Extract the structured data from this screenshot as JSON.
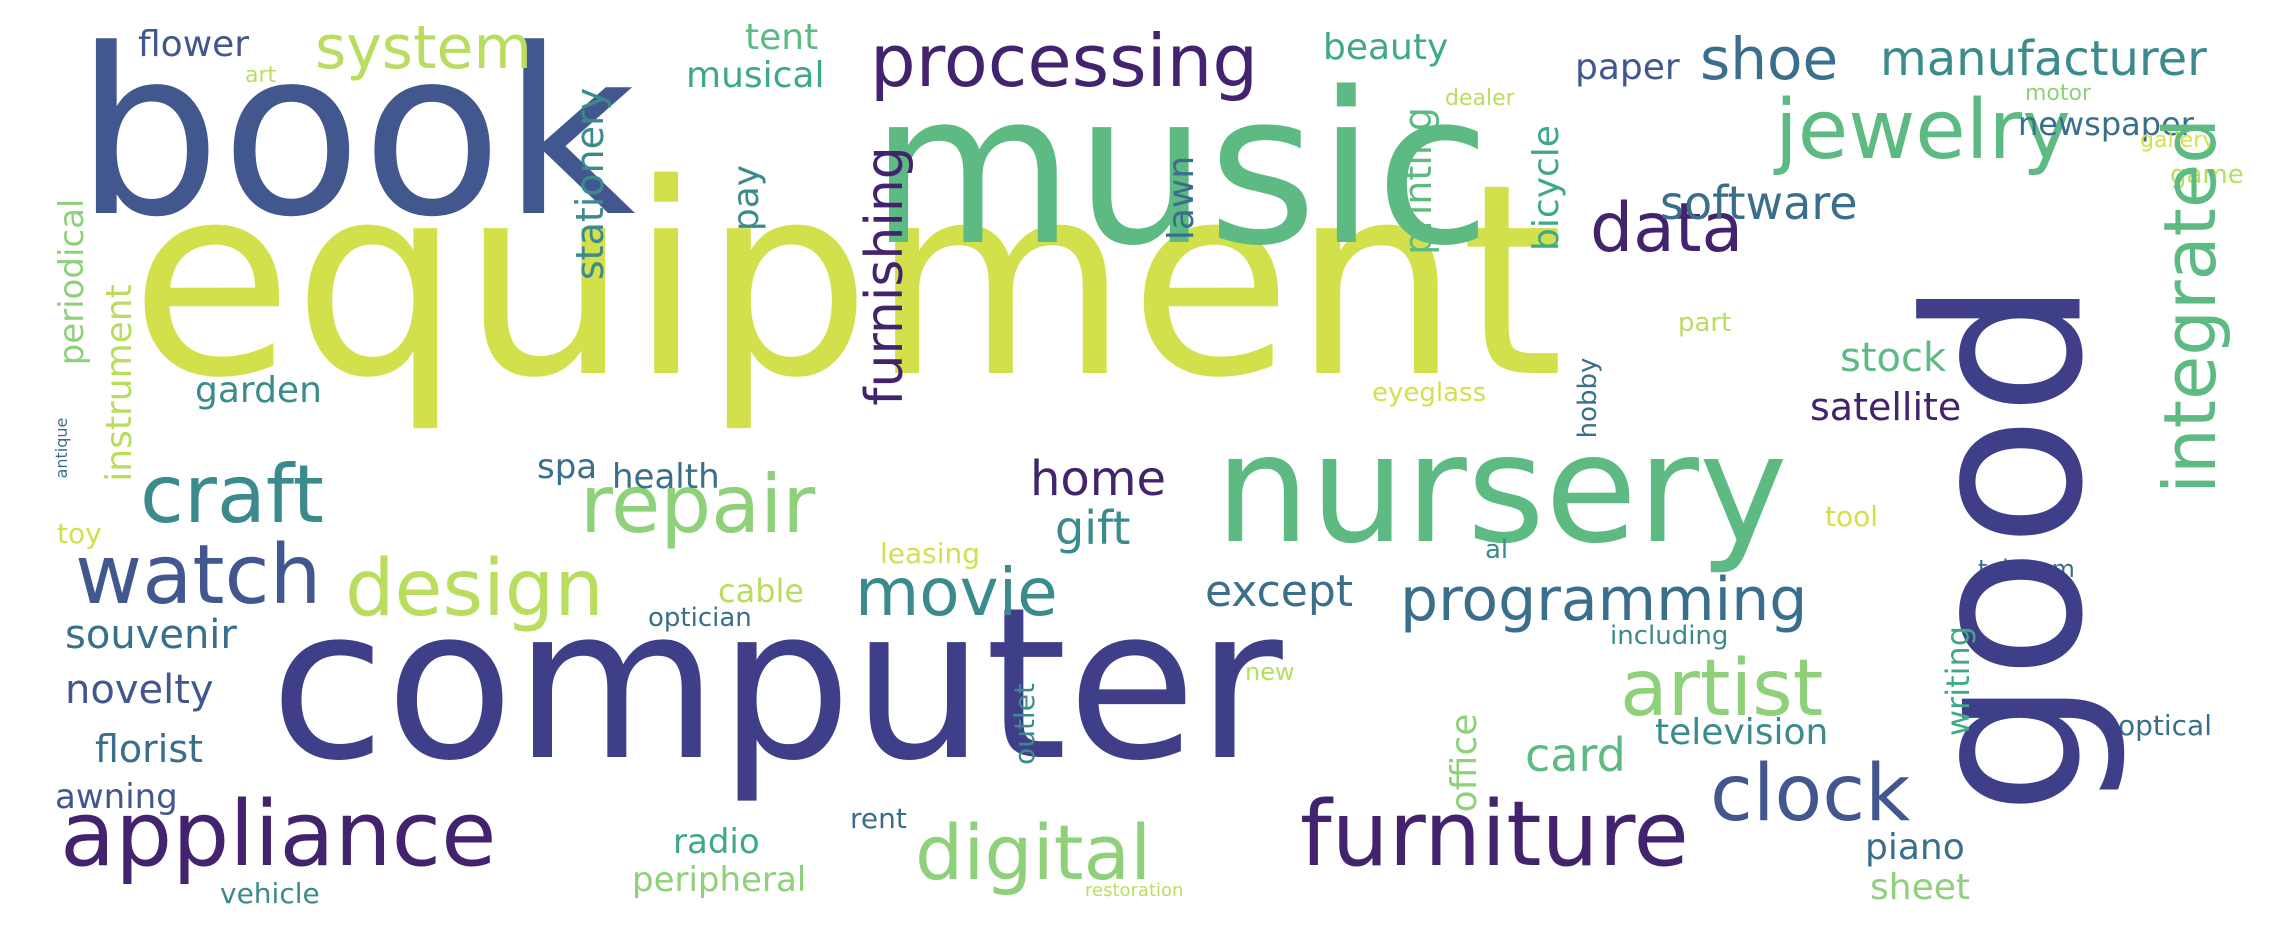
{
  "palette": {
    "lime": "#d2e14b",
    "yellow_green": "#b9dd5e",
    "light_green": "#8fd07a",
    "green": "#5dba82",
    "teal_green": "#3fa88a",
    "teal": "#3c8b8c",
    "blue_teal": "#3a6f8c",
    "slate": "#41578d",
    "indigo": "#3f3e88",
    "purple": "#43236e"
  },
  "words": [
    {
      "text": "equipment",
      "color": "#d2e14b"
    },
    {
      "text": "music",
      "color": "#5dba82"
    },
    {
      "text": "book",
      "color": "#41578d"
    },
    {
      "text": "computer",
      "color": "#3f3e88"
    },
    {
      "text": "nursery",
      "color": "#5dba82"
    },
    {
      "text": "good",
      "color": "#3f3e88"
    },
    {
      "text": "processing",
      "color": "#43236e"
    },
    {
      "text": "jewelry",
      "color": "#5dba82"
    },
    {
      "text": "repair",
      "color": "#8fd07a"
    },
    {
      "text": "appliance",
      "color": "#43236e"
    },
    {
      "text": "furniture",
      "color": "#43236e"
    },
    {
      "text": "digital",
      "color": "#8fd07a"
    },
    {
      "text": "watch",
      "color": "#41578d"
    },
    {
      "text": "craft",
      "color": "#3c8b8c"
    },
    {
      "text": "design",
      "color": "#b9dd5e"
    },
    {
      "text": "system",
      "color": "#b9dd5e"
    },
    {
      "text": "integrated",
      "color": "#5dba82"
    },
    {
      "text": "data",
      "color": "#43236e"
    },
    {
      "text": "shoe",
      "color": "#3a6f8c"
    },
    {
      "text": "manufacturer",
      "color": "#3c8b8c"
    },
    {
      "text": "movie",
      "color": "#3c8b8c"
    },
    {
      "text": "artist",
      "color": "#8fd07a"
    },
    {
      "text": "clock",
      "color": "#41578d"
    },
    {
      "text": "programming",
      "color": "#3a6f8c"
    },
    {
      "text": "software",
      "color": "#3a6f8c"
    },
    {
      "text": "furnishing",
      "color": "#43236e"
    },
    {
      "text": "except",
      "color": "#3a6f8c"
    },
    {
      "text": "home",
      "color": "#43236e"
    },
    {
      "text": "gift",
      "color": "#3c8b8c"
    },
    {
      "text": "souvenir",
      "color": "#3a6f8c"
    },
    {
      "text": "novelty",
      "color": "#41578d"
    },
    {
      "text": "florist",
      "color": "#3a6f8c"
    },
    {
      "text": "awning",
      "color": "#41578d"
    },
    {
      "text": "vehicle",
      "color": "#3c8b8c"
    },
    {
      "text": "card",
      "color": "#5dba82"
    },
    {
      "text": "television",
      "color": "#3c8b8c"
    },
    {
      "text": "piano",
      "color": "#3a6f8c"
    },
    {
      "text": "sheet",
      "color": "#8fd07a"
    },
    {
      "text": "stock",
      "color": "#5dba82"
    },
    {
      "text": "satellite",
      "color": "#43236e"
    },
    {
      "text": "health",
      "color": "#3a6f8c"
    },
    {
      "text": "spa",
      "color": "#3a6f8c"
    },
    {
      "text": "garden",
      "color": "#3c8b8c"
    },
    {
      "text": "instrument",
      "color": "#b9dd5e"
    },
    {
      "text": "periodical",
      "color": "#8fd07a"
    },
    {
      "text": "stationery",
      "color": "#3c8b8c"
    },
    {
      "text": "musical",
      "color": "#3fa88a"
    },
    {
      "text": "tent",
      "color": "#5dba82"
    },
    {
      "text": "flower",
      "color": "#41578d"
    },
    {
      "text": "art",
      "color": "#b9dd5e"
    },
    {
      "text": "pay",
      "color": "#3c8b8c"
    },
    {
      "text": "lawn",
      "color": "#3a6f8c"
    },
    {
      "text": "printing",
      "color": "#5dba82"
    },
    {
      "text": "bicycle",
      "color": "#3fa88a"
    },
    {
      "text": "beauty",
      "color": "#3fa88a"
    },
    {
      "text": "paper",
      "color": "#41578d"
    },
    {
      "text": "newspaper",
      "color": "#3a6f8c"
    },
    {
      "text": "dealer",
      "color": "#b9dd5e"
    },
    {
      "text": "motor",
      "color": "#8fd07a"
    },
    {
      "text": "gallery",
      "color": "#d2e14b"
    },
    {
      "text": "game",
      "color": "#b9dd5e"
    },
    {
      "text": "part",
      "color": "#b9dd5e"
    },
    {
      "text": "eyeglass",
      "color": "#d2e14b"
    },
    {
      "text": "hobby",
      "color": "#3a6f8c"
    },
    {
      "text": "tool",
      "color": "#d2e14b"
    },
    {
      "text": "al",
      "color": "#3c8b8c"
    },
    {
      "text": "telecom",
      "color": "#3a6f8c"
    },
    {
      "text": "including",
      "color": "#3c8b8c"
    },
    {
      "text": "writing",
      "color": "#3fa88a"
    },
    {
      "text": "optical",
      "color": "#3a6f8c"
    },
    {
      "text": "office",
      "color": "#8fd07a"
    },
    {
      "text": "outlet",
      "color": "#3c8b8c"
    },
    {
      "text": "new",
      "color": "#b9dd5e"
    },
    {
      "text": "cable",
      "color": "#b9dd5e"
    },
    {
      "text": "optician",
      "color": "#3a6f8c"
    },
    {
      "text": "leasing",
      "color": "#d2e14b"
    },
    {
      "text": "radio",
      "color": "#3fa88a"
    },
    {
      "text": "peripheral",
      "color": "#8fd07a"
    },
    {
      "text": "rent",
      "color": "#3a6f8c"
    },
    {
      "text": "restoration",
      "color": "#b9dd5e"
    },
    {
      "text": "toy",
      "color": "#d2e14b"
    },
    {
      "text": "antique",
      "color": "#3a6f8c"
    }
  ]
}
